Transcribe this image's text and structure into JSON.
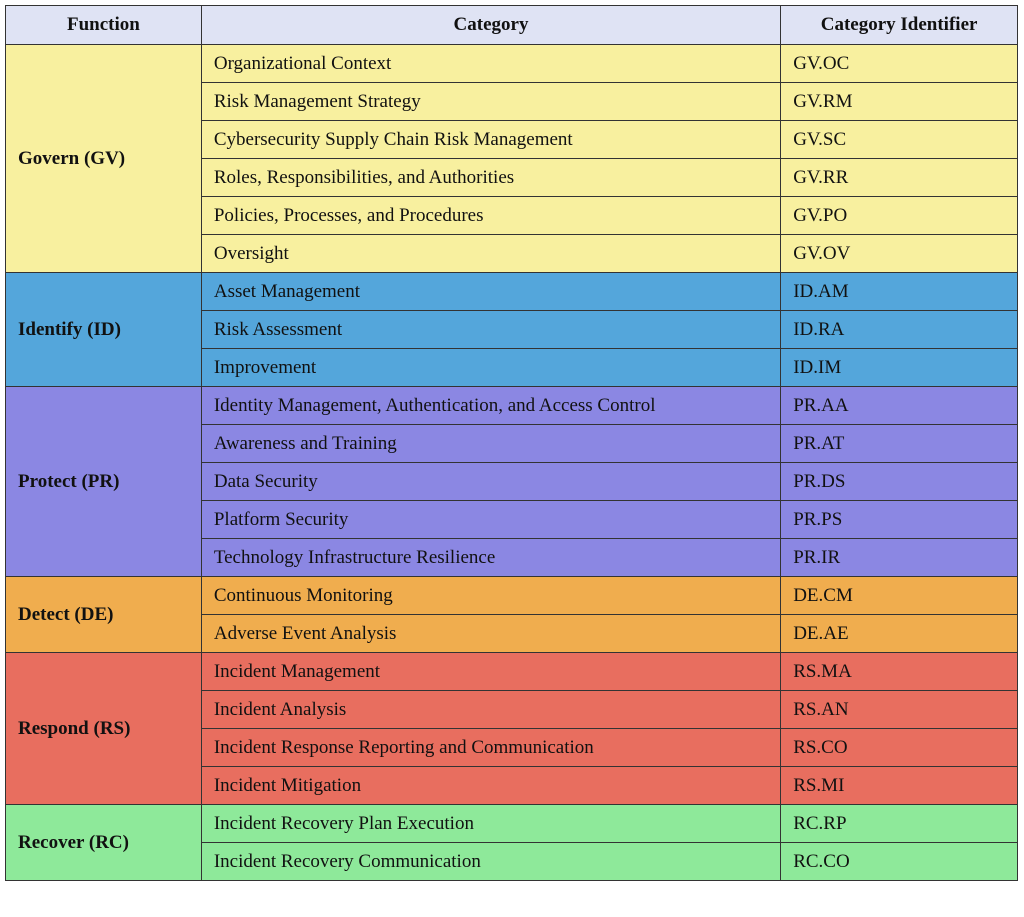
{
  "header": {
    "function": "Function",
    "category": "Category",
    "identifier": "Category Identifier"
  },
  "functions": [
    {
      "name": "Govern (GV)",
      "color": "#f8f09f",
      "categories": [
        {
          "label": "Organizational Context",
          "id": "GV.OC"
        },
        {
          "label": "Risk Management Strategy",
          "id": "GV.RM"
        },
        {
          "label": "Cybersecurity Supply Chain Risk Management",
          "id": "GV.SC"
        },
        {
          "label": "Roles, Responsibilities, and Authorities",
          "id": "GV.RR"
        },
        {
          "label": "Policies, Processes, and Procedures",
          "id": "GV.PO"
        },
        {
          "label": "Oversight",
          "id": "GV.OV"
        }
      ]
    },
    {
      "name": "Identify (ID)",
      "color": "#54a6db",
      "categories": [
        {
          "label": "Asset Management",
          "id": "ID.AM"
        },
        {
          "label": "Risk Assessment",
          "id": "ID.RA"
        },
        {
          "label": "Improvement",
          "id": "ID.IM"
        }
      ]
    },
    {
      "name": "Protect (PR)",
      "color": "#8b87e3",
      "categories": [
        {
          "label": "Identity Management, Authentication, and Access Control",
          "id": "PR.AA"
        },
        {
          "label": "Awareness and Training",
          "id": "PR.AT"
        },
        {
          "label": "Data Security",
          "id": "PR.DS"
        },
        {
          "label": "Platform Security",
          "id": "PR.PS"
        },
        {
          "label": "Technology Infrastructure Resilience",
          "id": "PR.IR"
        }
      ]
    },
    {
      "name": "Detect (DE)",
      "color": "#f0ad4e",
      "categories": [
        {
          "label": "Continuous Monitoring",
          "id": "DE.CM"
        },
        {
          "label": "Adverse Event Analysis",
          "id": "DE.AE"
        }
      ]
    },
    {
      "name": "Respond (RS)",
      "color": "#e86e5f",
      "categories": [
        {
          "label": "Incident Management",
          "id": "RS.MA"
        },
        {
          "label": "Incident Analysis",
          "id": "RS.AN"
        },
        {
          "label": "Incident Response Reporting and Communication",
          "id": "RS.CO"
        },
        {
          "label": "Incident Mitigation",
          "id": "RS.MI"
        }
      ]
    },
    {
      "name": "Recover (RC)",
      "color": "#8ee99a",
      "categories": [
        {
          "label": "Incident Recovery Plan Execution",
          "id": "RC.RP"
        },
        {
          "label": "Incident Recovery Communication",
          "id": "RC.CO"
        }
      ]
    }
  ]
}
